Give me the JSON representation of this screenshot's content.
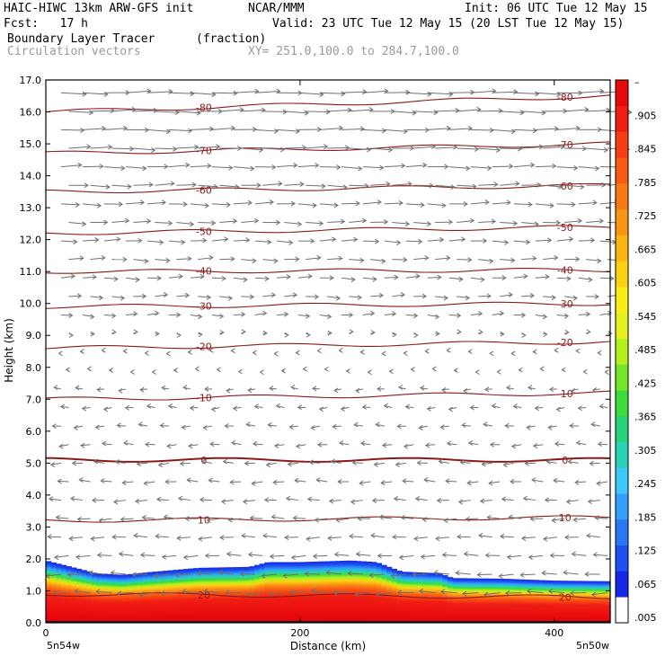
{
  "header": {
    "model": "HAIC-HIWC 13km ARW-GFS init",
    "org": "NCAR/MMM",
    "init": "Init: 06 UTC Tue 12 May 15",
    "fcst": "Fcst:   17 h",
    "valid": "Valid: 23 UTC Tue 12 May 15 (20 LST Tue 12 May 15)",
    "field": "Boundary Layer Tracer",
    "field_units": "(fraction)",
    "overlay": "Circulation vectors",
    "xy": "XY= 251.0,100.0 to 284.7,100.0"
  },
  "chart_data": {
    "type": "heatmap",
    "title": "Boundary Layer Tracer (fraction)",
    "xlabel": "Distance (km)",
    "ylabel": "Height (km)",
    "xlim": [
      0,
      444
    ],
    "ylim": [
      0,
      17
    ],
    "x_ticks": [
      0,
      200,
      400
    ],
    "y_ticks": [
      "0.0",
      "1.0",
      "2.0",
      "3.0",
      "4.0",
      "5.0",
      "6.0",
      "7.0",
      "8.0",
      "9.0",
      "10.0",
      "11.0",
      "12.0",
      "13.0",
      "14.0",
      "15.0",
      "16.0",
      "17.0"
    ],
    "x_endpoint_labels": [
      "5n54w",
      "5n50w"
    ],
    "colorbar": {
      "labels": [
        ".005",
        ".065",
        ".125",
        ".185",
        ".245",
        ".305",
        ".365",
        ".425",
        ".485",
        ".545",
        ".605",
        ".665",
        ".725",
        ".785",
        ".845",
        ".905",
        "–"
      ],
      "colors": [
        "#ffffff",
        "#1428e6",
        "#1e50f0",
        "#2878f5",
        "#32a0fa",
        "#3cc8fa",
        "#28d2b4",
        "#28d278",
        "#3cdc3c",
        "#78e628",
        "#b4f01e",
        "#e6f01e",
        "#faeb14",
        "#fad214",
        "#fab414",
        "#fa9614",
        "#fa7814",
        "#fa5a14",
        "#fa3c14",
        "#f01e14",
        "#e60a0a"
      ]
    },
    "tracer_top_km": [
      [
        0,
        1.95
      ],
      [
        20,
        1.75
      ],
      [
        40,
        1.55
      ],
      [
        60,
        1.5
      ],
      [
        80,
        1.58
      ],
      [
        120,
        1.72
      ],
      [
        160,
        1.75
      ],
      [
        175,
        1.9
      ],
      [
        200,
        1.9
      ],
      [
        240,
        1.95
      ],
      [
        260,
        1.9
      ],
      [
        280,
        1.6
      ],
      [
        310,
        1.55
      ],
      [
        320,
        1.4
      ],
      [
        360,
        1.38
      ],
      [
        400,
        1.32
      ],
      [
        444,
        1.3
      ]
    ],
    "isotherms": [
      {
        "label": "-80",
        "h": [
          16.0,
          16.5
        ]
      },
      {
        "label": "-70",
        "h": [
          14.7,
          15.0
        ]
      },
      {
        "label": "-60",
        "h": [
          13.5,
          13.7
        ]
      },
      {
        "label": "-50",
        "h": [
          12.2,
          12.4
        ]
      },
      {
        "label": "-40",
        "h": [
          11.0,
          11.05
        ]
      },
      {
        "label": "-30",
        "h": [
          9.9,
          10.0
        ]
      },
      {
        "label": "-20",
        "h": [
          8.6,
          8.8
        ]
      },
      {
        "label": "-10",
        "h": [
          7.0,
          7.2
        ]
      },
      {
        "label": "0",
        "h": [
          5.1,
          5.1
        ]
      },
      {
        "label": "10",
        "h": [
          3.2,
          3.3
        ]
      },
      {
        "label": "20",
        "h": [
          0.9,
          0.8
        ]
      }
    ],
    "wind_vectors": {
      "upper_levels_dir": "eastward",
      "lower_levels_dir": "westward",
      "transition_km": 8.5
    },
    "legend_position": "right colorbar",
    "grid": false
  }
}
